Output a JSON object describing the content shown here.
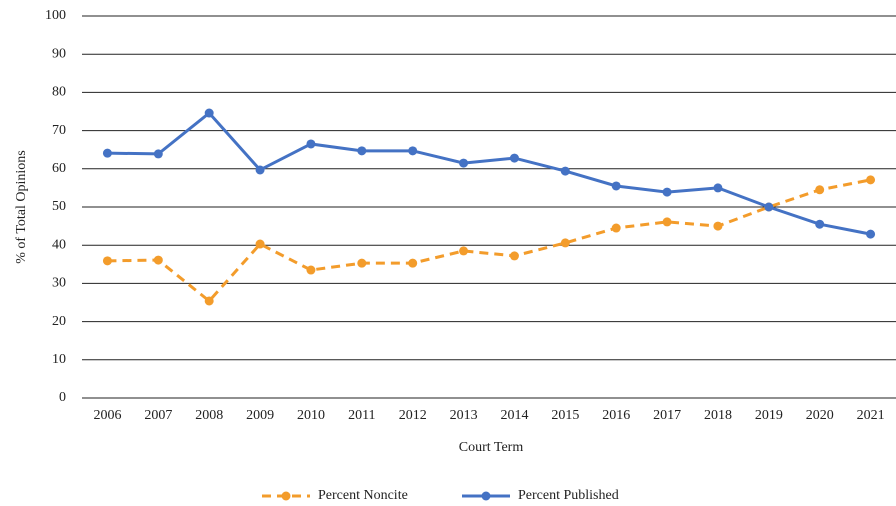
{
  "chart_data": {
    "type": "line",
    "x_label": "Court Term",
    "y_label": "% of Total Opinions",
    "categories": [
      "2006",
      "2007",
      "2008",
      "2009",
      "2010",
      "2011",
      "2012",
      "2013",
      "2014",
      "2015",
      "2016",
      "2017",
      "2018",
      "2019",
      "2020",
      "2021"
    ],
    "series": [
      {
        "name": "Percent Noncite",
        "color": "#f39c2b",
        "style": "dashed",
        "values": [
          35.9,
          36.1,
          25.4,
          40.3,
          33.5,
          35.3,
          35.3,
          38.5,
          37.2,
          40.6,
          44.5,
          46.1,
          45.0,
          50.0,
          54.5,
          57.1
        ]
      },
      {
        "name": "Percent Published",
        "color": "#4472c4",
        "style": "solid",
        "values": [
          64.1,
          63.9,
          74.6,
          59.7,
          66.5,
          64.7,
          64.7,
          61.5,
          62.8,
          59.4,
          55.5,
          53.9,
          55.0,
          50.0,
          45.5,
          42.9
        ]
      }
    ],
    "ylim": [
      0,
      100
    ],
    "yticks": [
      0,
      10,
      20,
      30,
      40,
      50,
      60,
      70,
      80,
      90,
      100
    ],
    "grid": true,
    "legend": "bottom"
  }
}
